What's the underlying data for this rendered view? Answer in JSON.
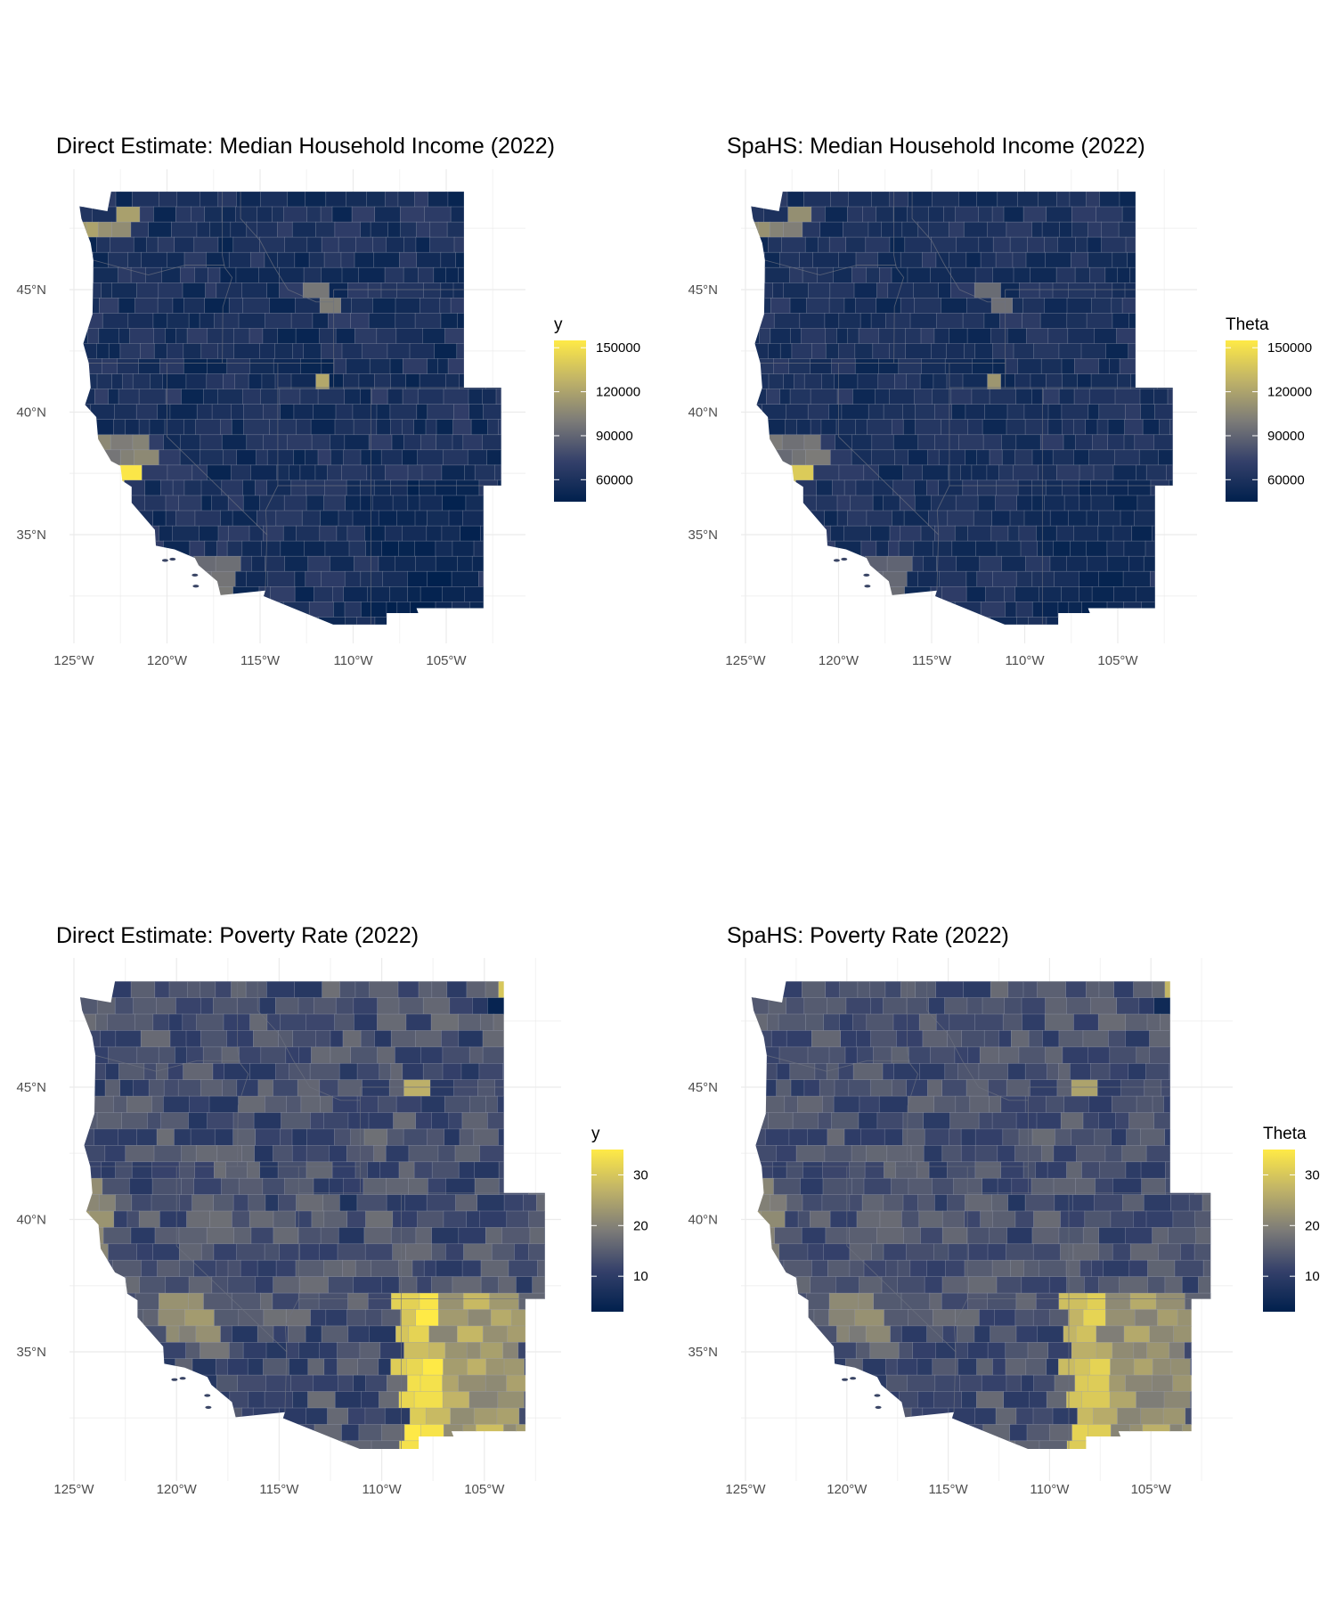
{
  "colors": {
    "low": "#00204d",
    "mid": "#7c7b78",
    "high": "#ffea46",
    "background": "#ffffff",
    "grid": "#ebebeb"
  },
  "panels": [
    {
      "title": "Direct Estimate: Median Household Income (2022)",
      "variable": "income",
      "legend": {
        "title": "y",
        "min": 45000,
        "max": 155000,
        "ticks": [
          "60000",
          "90000",
          "120000",
          "150000"
        ],
        "tick_values": [
          60000,
          90000,
          120000,
          150000
        ]
      },
      "x_ticks": [
        "125°W",
        "120°W",
        "115°W",
        "110°W",
        "105°W"
      ],
      "y_ticks": [
        "45°N",
        "40°N",
        "35°N"
      ]
    },
    {
      "title": "SpaHS: Median Household Income (2022)",
      "variable": "income",
      "legend": {
        "title": "Theta",
        "min": 45000,
        "max": 155000,
        "ticks": [
          "60000",
          "90000",
          "120000",
          "150000"
        ],
        "tick_values": [
          60000,
          90000,
          120000,
          150000
        ]
      },
      "x_ticks": [
        "125°W",
        "120°W",
        "115°W",
        "110°W",
        "105°W"
      ],
      "y_ticks": [
        "45°N",
        "40°N",
        "35°N"
      ]
    },
    {
      "title": "Direct Estimate: Poverty Rate (2022)",
      "variable": "poverty",
      "legend": {
        "title": "y",
        "min": 3,
        "max": 35,
        "ticks": [
          "10",
          "20",
          "30"
        ],
        "tick_values": [
          10,
          20,
          30
        ]
      },
      "x_ticks": [
        "125°W",
        "120°W",
        "115°W",
        "110°W",
        "105°W"
      ],
      "y_ticks": [
        "45°N",
        "40°N",
        "35°N"
      ]
    },
    {
      "title": "SpaHS: Poverty Rate (2022)",
      "variable": "poverty",
      "legend": {
        "title": "Theta",
        "min": 3,
        "max": 35,
        "ticks": [
          "10",
          "20",
          "30"
        ],
        "tick_values": [
          10,
          20,
          30
        ]
      },
      "x_ticks": [
        "125°W",
        "120°W",
        "115°W",
        "110°W",
        "105°W"
      ],
      "y_ticks": [
        "45°N",
        "40°N",
        "35°N"
      ]
    }
  ]
}
